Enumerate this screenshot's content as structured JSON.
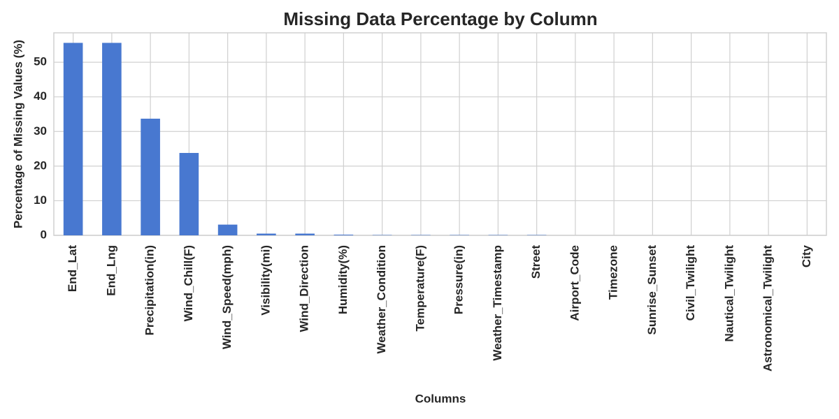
{
  "chart_data": {
    "type": "bar",
    "title": "Missing Data Percentage by Column",
    "xlabel": "Columns",
    "ylabel": "Percentage of Missing Values (%)",
    "categories": [
      "End_Lat",
      "End_Lng",
      "Precipitation(in)",
      "Wind_Chill(F)",
      "Wind_Speed(mph)",
      "Visibility(mi)",
      "Wind_Direction",
      "Humidity(%)",
      "Weather_Condition",
      "Temperature(F)",
      "Pressure(in)",
      "Weather_Timestamp",
      "Street",
      "Airport_Code",
      "Timezone",
      "Sunrise_Sunset",
      "Civil_Twilight",
      "Nautical_Twilight",
      "Astronomical_Twilight",
      "City"
    ],
    "values": [
      55.6,
      55.6,
      33.7,
      23.8,
      3.1,
      0.5,
      0.5,
      0.2,
      0.1,
      0.1,
      0.1,
      0.1,
      0.1,
      0.0,
      0.0,
      0.0,
      0.0,
      0.0,
      0.0,
      0.0
    ],
    "color": "#4878d0",
    "ylim": [
      0,
      58.5
    ],
    "yticks": [
      0,
      10,
      20,
      30,
      40,
      50
    ],
    "grid": true
  }
}
